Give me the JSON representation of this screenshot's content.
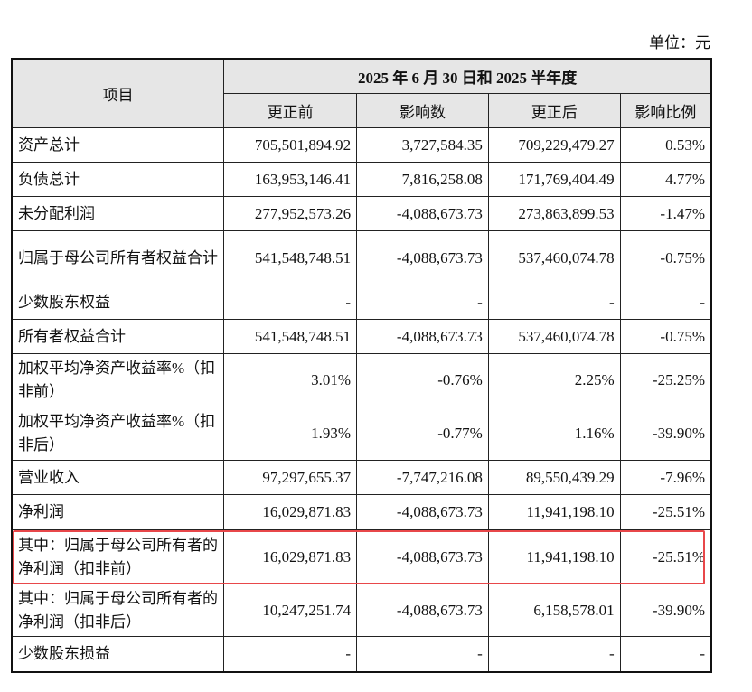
{
  "unit": "单位：元",
  "header": {
    "item": "项目",
    "period": "2025 年 6 月 30 日和 2025 半年度",
    "cols": [
      "更正前",
      "影响数",
      "更正后",
      "影响比例"
    ]
  },
  "rows": [
    {
      "label": "资产总计",
      "values": [
        "705,501,894.92",
        "3,727,584.35",
        "709,229,479.27",
        "0.53%"
      ]
    },
    {
      "label": "负债总计",
      "values": [
        "163,953,146.41",
        "7,816,258.08",
        "171,769,404.49",
        "4.77%"
      ]
    },
    {
      "label": "未分配利润",
      "values": [
        "277,952,573.26",
        "-4,088,673.73",
        "273,863,899.53",
        "-1.47%"
      ]
    },
    {
      "label": "归属于母公司所有者权益合计",
      "values": [
        "541,548,748.51",
        "-4,088,673.73",
        "537,460,074.78",
        "-0.75%"
      ]
    },
    {
      "label": "少数股东权益",
      "values": [
        "-",
        "-",
        "-",
        "-"
      ]
    },
    {
      "label": "所有者权益合计",
      "values": [
        "541,548,748.51",
        "-4,088,673.73",
        "537,460,074.78",
        "-0.75%"
      ]
    },
    {
      "label": "加权平均净资产收益率%（扣非前）",
      "values": [
        "3.01%",
        "-0.76%",
        "2.25%",
        "-25.25%"
      ]
    },
    {
      "label": "加权平均净资产收益率%（扣非后）",
      "values": [
        "1.93%",
        "-0.77%",
        "1.16%",
        "-39.90%"
      ]
    },
    {
      "label": "营业收入",
      "values": [
        "97,297,655.37",
        "-7,747,216.08",
        "89,550,439.29",
        "-7.96%"
      ]
    },
    {
      "label": "净利润",
      "values": [
        "16,029,871.83",
        "-4,088,673.73",
        "11,941,198.10",
        "-25.51%"
      ]
    },
    {
      "label": "其中：归属于母公司所有者的净利润（扣非前）",
      "values": [
        "16,029,871.83",
        "-4,088,673.73",
        "11,941,198.10",
        "-25.51%"
      ]
    },
    {
      "label": "其中：归属于母公司所有者的净利润（扣非后）",
      "values": [
        "10,247,251.74",
        "-4,088,673.73",
        "6,158,578.01",
        "-39.90%"
      ]
    },
    {
      "label": "少数股东损益",
      "values": [
        "-",
        "-",
        "-",
        "-"
      ]
    }
  ],
  "highlight_color": "#e8474a"
}
